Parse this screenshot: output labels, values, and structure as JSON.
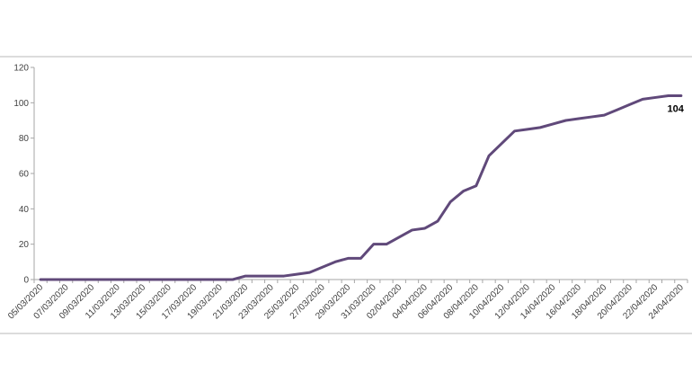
{
  "chart_data": {
    "type": "line",
    "title": "",
    "xlabel": "",
    "ylabel": "",
    "ylim": [
      0,
      120
    ],
    "yticks": [
      "0",
      "20",
      "40",
      "60",
      "80",
      "100",
      "120"
    ],
    "grid": false,
    "legend": "none",
    "x_tick_labels": [
      "05/03/2020",
      "07/03/2020",
      "09/03/2020",
      "11/03/2020",
      "13/03/2020",
      "15/03/2020",
      "17/03/2020",
      "19/03/2020",
      "21/03/2020",
      "23/03/2020",
      "25/03/2020",
      "27/03/2020",
      "29/03/2020",
      "31/03/2020",
      "02/04/2020",
      "04/04/2020",
      "06/04/2020",
      "08/04/2020",
      "10/04/2020",
      "12/04/2020",
      "14/04/2020",
      "16/04/2020",
      "18/04/2020",
      "20/04/2020",
      "22/04/2020",
      "24/04/2020"
    ],
    "series": [
      {
        "color": "#60497a",
        "x": [
          "05/03/2020",
          "06/03/2020",
          "07/03/2020",
          "08/03/2020",
          "09/03/2020",
          "10/03/2020",
          "11/03/2020",
          "12/03/2020",
          "13/03/2020",
          "14/03/2020",
          "15/03/2020",
          "16/03/2020",
          "17/03/2020",
          "18/03/2020",
          "19/03/2020",
          "20/03/2020",
          "21/03/2020",
          "22/03/2020",
          "23/03/2020",
          "24/03/2020",
          "25/03/2020",
          "26/03/2020",
          "27/03/2020",
          "28/03/2020",
          "29/03/2020",
          "30/03/2020",
          "31/03/2020",
          "01/04/2020",
          "02/04/2020",
          "03/04/2020",
          "04/04/2020",
          "05/04/2020",
          "06/04/2020",
          "07/04/2020",
          "08/04/2020",
          "09/04/2020",
          "10/04/2020",
          "11/04/2020",
          "12/04/2020",
          "13/04/2020",
          "14/04/2020",
          "15/04/2020",
          "16/04/2020",
          "17/04/2020",
          "18/04/2020",
          "19/04/2020",
          "20/04/2020",
          "21/04/2020",
          "22/04/2020",
          "23/04/2020",
          "24/04/2020"
        ],
        "values": [
          0,
          0,
          0,
          0,
          0,
          0,
          0,
          0,
          0,
          0,
          0,
          0,
          0,
          0,
          0,
          0,
          2,
          2,
          2,
          2,
          3,
          4,
          7,
          10,
          12,
          12,
          20,
          20,
          24,
          28,
          29,
          33,
          44,
          50,
          53,
          70,
          77,
          84,
          85,
          86,
          88,
          90,
          91,
          92,
          93,
          96,
          99,
          102,
          103,
          104,
          104
        ]
      }
    ],
    "annotations": [
      {
        "text": "104",
        "x": "24/04/2020",
        "y": 104
      }
    ]
  }
}
